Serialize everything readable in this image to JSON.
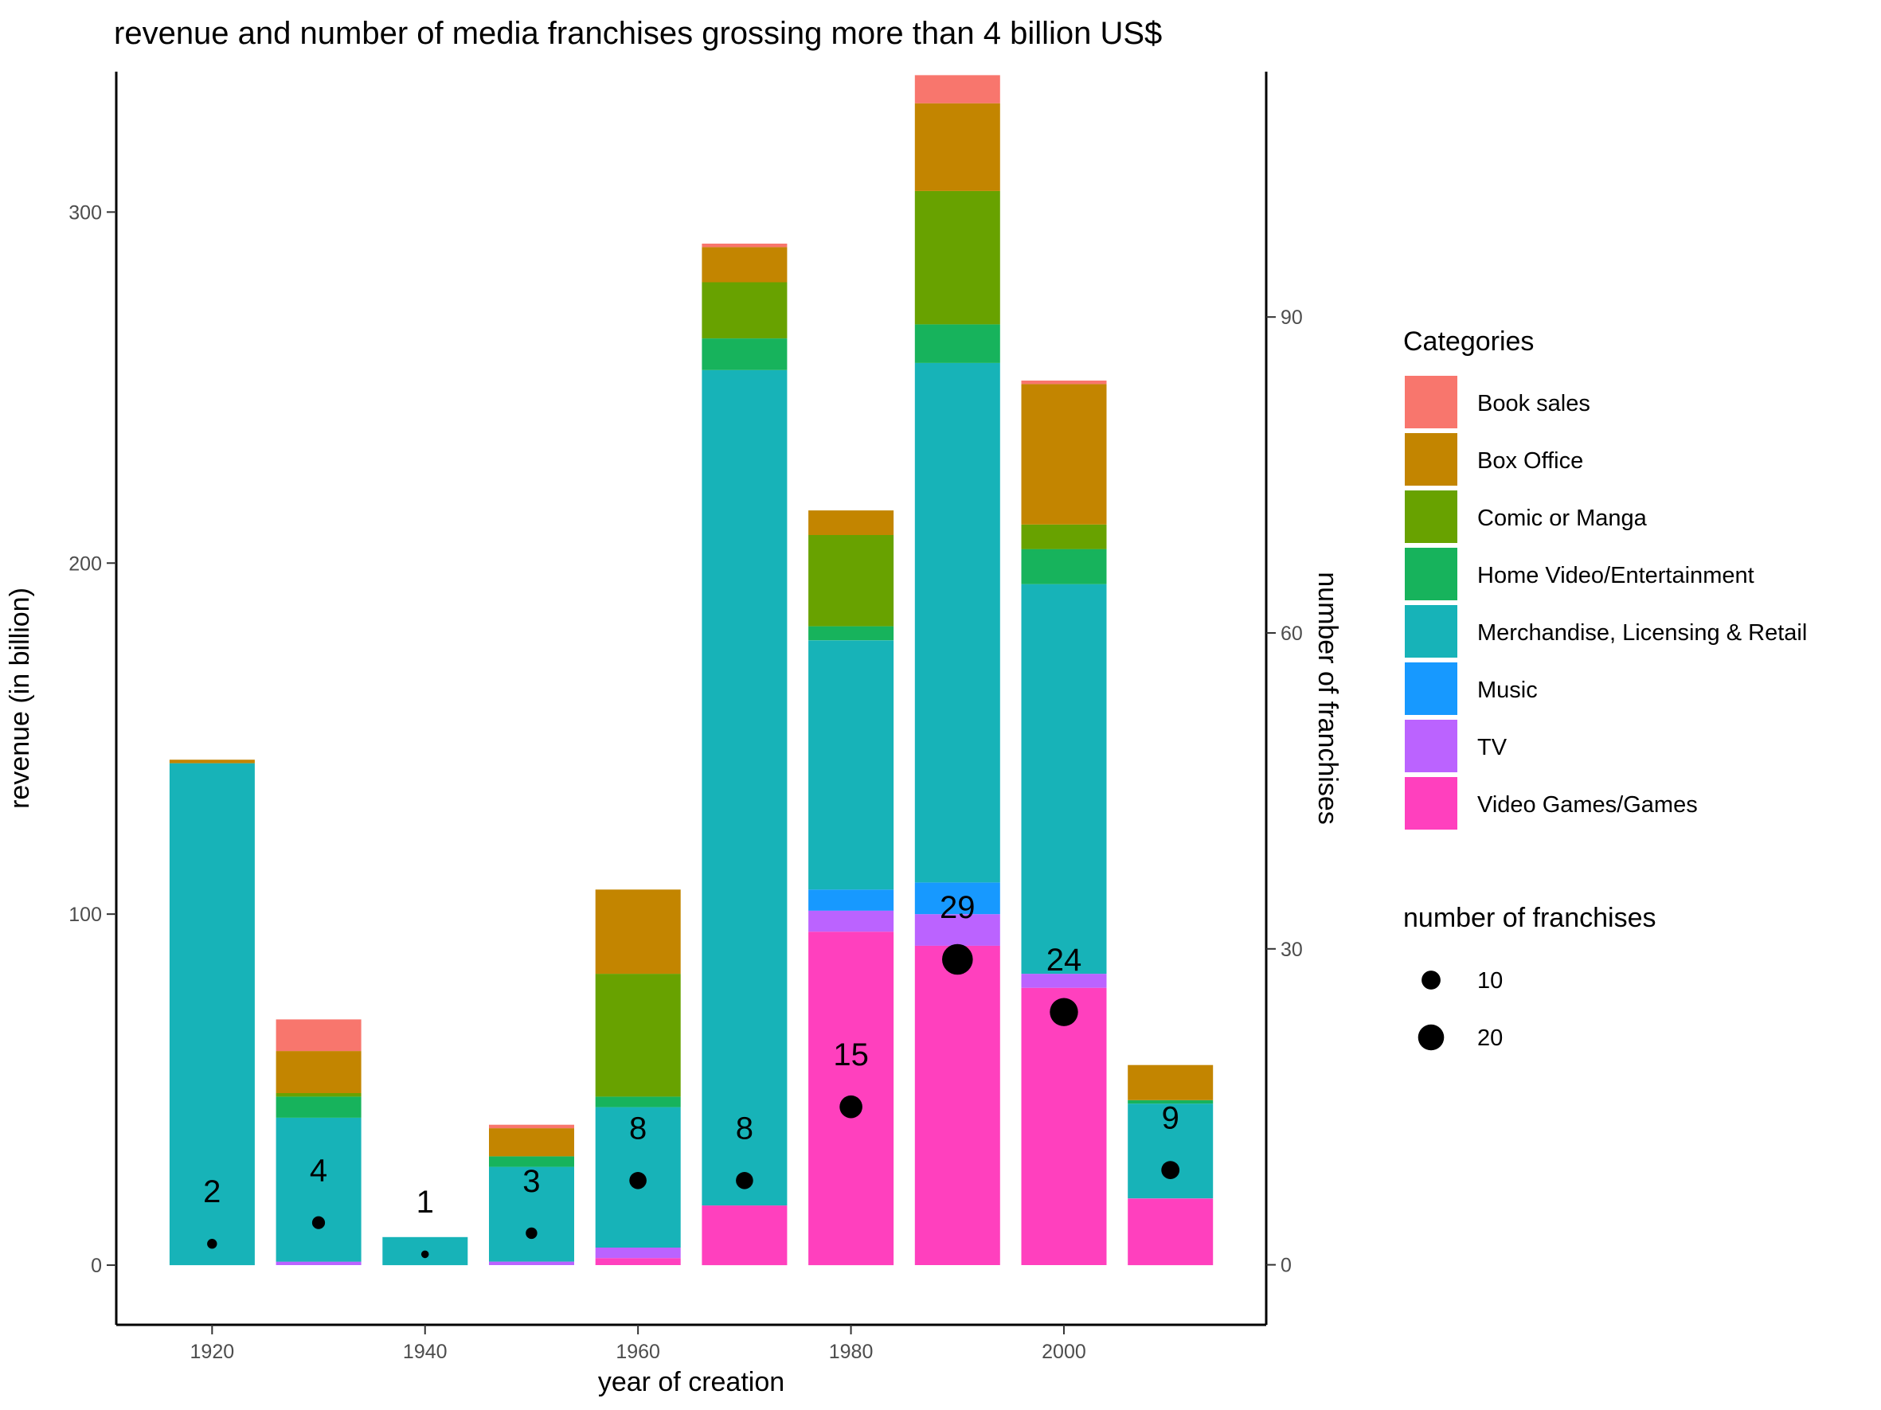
{
  "chart_data": {
    "type": "bar",
    "stacked": true,
    "title": "revenue and number of media franchises grossing more than 4 billion US$",
    "xlabel": "year of creation",
    "ylabel": "revenue (in billion)",
    "y2label": "number of franchises",
    "xlim": [
      1911,
      2019
    ],
    "ylim": [
      -17,
      340
    ],
    "y2lim": [
      -5.7,
      113.3
    ],
    "x_ticks": [
      1920,
      1940,
      1960,
      1980,
      2000
    ],
    "y_ticks": [
      0,
      100,
      200,
      300
    ],
    "y2_ticks": [
      0,
      30,
      60,
      90
    ],
    "x": [
      1920,
      1930,
      1940,
      1950,
      1960,
      1970,
      1980,
      1990,
      2000,
      2010
    ],
    "series": [
      {
        "name": "Video Games/Games",
        "color": "#FF40BE",
        "values": [
          0,
          0,
          0,
          0,
          2,
          17,
          95,
          91,
          79,
          19
        ]
      },
      {
        "name": "TV",
        "color": "#BB63FF",
        "values": [
          0,
          1,
          0,
          1,
          3,
          0,
          6,
          9,
          4,
          0
        ]
      },
      {
        "name": "Music",
        "color": "#1799FF",
        "values": [
          0,
          0,
          0,
          0,
          0,
          0,
          6,
          9,
          0,
          0
        ]
      },
      {
        "name": "Merchandise, Licensing & Retail",
        "color": "#17B3B8",
        "values": [
          143,
          41,
          8,
          27,
          40,
          238,
          71,
          148,
          111,
          27
        ]
      },
      {
        "name": "Home Video/Entertainment",
        "color": "#17B35C",
        "values": [
          0,
          6,
          0,
          3,
          3,
          9,
          4,
          11,
          10,
          1
        ]
      },
      {
        "name": "Comic or Manga",
        "color": "#68A200",
        "values": [
          0,
          1,
          0,
          0,
          35,
          16,
          26,
          38,
          7,
          0
        ]
      },
      {
        "name": "Box Office",
        "color": "#C38500",
        "values": [
          1,
          12,
          0,
          8,
          24,
          10,
          7,
          25,
          40,
          10
        ]
      },
      {
        "name": "Book sales",
        "color": "#F8766D",
        "values": [
          0,
          9,
          0,
          1,
          0,
          1,
          0,
          8,
          1,
          0
        ]
      }
    ],
    "franchise_counts": [
      2,
      4,
      1,
      3,
      8,
      8,
      15,
      29,
      24,
      9
    ],
    "legend": {
      "title": "Categories",
      "placement": "right",
      "order": [
        "Book sales",
        "Box Office",
        "Comic or Manga",
        "Home Video/Entertainment",
        "Merchandise, Licensing & Retail",
        "Music",
        "TV",
        "Video Games/Games"
      ]
    },
    "size_legend": {
      "title": "number of franchises",
      "values": [
        10,
        20
      ],
      "labels": [
        "10",
        "20"
      ]
    },
    "grid": false
  }
}
